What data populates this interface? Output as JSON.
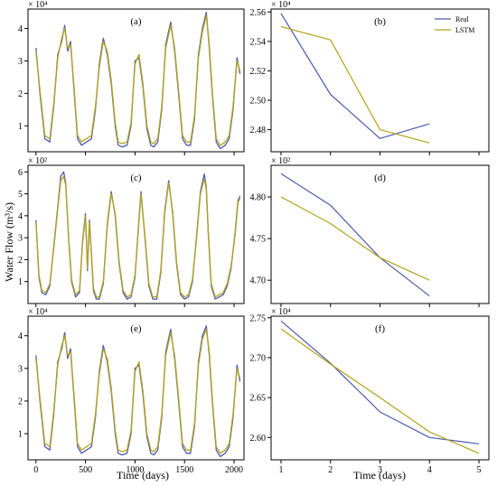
{
  "figure": {
    "ylabel": "Water Flow (m³/s)",
    "xlabel_left": "Time (days)",
    "xlabel_right": "Time (days)"
  },
  "colors": {
    "real": "#4a5bb0",
    "lstm": "#b5a21a",
    "extra": "#7fae3a"
  },
  "chart_data": [
    {
      "id": "a",
      "panel_label": "(a)",
      "type": "line",
      "scale_label": "× 10⁴",
      "xlim": [
        -80,
        2100
      ],
      "ylim": [
        0.2,
        4.6
      ],
      "xticks": [
        0,
        500,
        1000,
        1500,
        2000
      ],
      "show_xticks": false,
      "yticks": [
        1,
        2,
        3,
        4
      ],
      "series": [
        {
          "key": "real",
          "name": "Real",
          "x": [
            0,
            40,
            90,
            140,
            180,
            220,
            260,
            290,
            320,
            350,
            380,
            420,
            460,
            510,
            560,
            600,
            640,
            680,
            720,
            760,
            800,
            830,
            870,
            920,
            960,
            1000,
            1040,
            1080,
            1120,
            1160,
            1190,
            1230,
            1270,
            1310,
            1360,
            1400,
            1440,
            1480,
            1520,
            1560,
            1600,
            1640,
            1680,
            1720,
            1750,
            1780,
            1820,
            1860,
            1910,
            1950,
            1990,
            2030,
            2060
          ],
          "y": [
            3.4,
            2.0,
            0.6,
            0.5,
            1.6,
            3.2,
            3.6,
            4.1,
            3.3,
            3.6,
            2.3,
            0.6,
            0.4,
            0.5,
            0.6,
            1.5,
            2.9,
            3.7,
            3.2,
            2.3,
            1.0,
            0.4,
            0.35,
            0.4,
            1.0,
            3.0,
            3.1,
            2.2,
            0.9,
            0.4,
            0.35,
            0.5,
            1.5,
            3.5,
            4.2,
            3.3,
            2.0,
            0.6,
            0.4,
            0.4,
            1.2,
            3.2,
            4.0,
            4.5,
            3.4,
            2.0,
            0.5,
            0.3,
            0.4,
            0.6,
            1.5,
            3.1,
            2.6
          ]
        },
        {
          "key": "lstm",
          "name": "LSTM",
          "x": [
            0,
            40,
            90,
            140,
            180,
            220,
            260,
            290,
            320,
            350,
            380,
            420,
            460,
            510,
            560,
            600,
            640,
            680,
            720,
            760,
            800,
            830,
            870,
            920,
            960,
            1000,
            1040,
            1080,
            1120,
            1160,
            1190,
            1230,
            1270,
            1310,
            1360,
            1400,
            1440,
            1480,
            1520,
            1560,
            1600,
            1640,
            1680,
            1720,
            1750,
            1780,
            1820,
            1860,
            1910,
            1950,
            1990,
            2030,
            2060
          ],
          "y": [
            3.3,
            2.1,
            0.7,
            0.6,
            1.7,
            3.1,
            3.7,
            4.0,
            3.4,
            3.5,
            2.4,
            0.7,
            0.5,
            0.6,
            0.7,
            1.6,
            2.8,
            3.6,
            3.3,
            2.4,
            1.1,
            0.5,
            0.45,
            0.5,
            1.1,
            2.9,
            3.2,
            2.3,
            1.0,
            0.5,
            0.45,
            0.6,
            1.6,
            3.4,
            4.1,
            3.4,
            2.1,
            0.7,
            0.5,
            0.5,
            1.3,
            3.1,
            3.9,
            4.4,
            3.5,
            2.1,
            0.6,
            0.4,
            0.5,
            0.7,
            1.6,
            3.0,
            2.7
          ]
        }
      ]
    },
    {
      "id": "b",
      "panel_label": "(b)",
      "type": "line",
      "scale_label": "× 10⁴",
      "xlim": [
        0.8,
        5.2
      ],
      "ylim": [
        2.465,
        2.562
      ],
      "xticks": [
        1,
        2,
        3,
        4,
        5
      ],
      "show_xticks": false,
      "yticks": [
        2.48,
        2.5,
        2.52,
        2.54,
        2.56
      ],
      "legend": "top-right",
      "series": [
        {
          "key": "real",
          "name": "Real",
          "x": [
            1,
            2,
            3,
            4
          ],
          "y": [
            2.559,
            2.504,
            2.474,
            2.484
          ]
        },
        {
          "key": "lstm",
          "name": "LSTM",
          "x": [
            1,
            2,
            3,
            4
          ],
          "y": [
            2.55,
            2.541,
            2.48,
            2.471
          ]
        }
      ]
    },
    {
      "id": "c",
      "panel_label": "(c)",
      "type": "line",
      "scale_label": "× 10²",
      "xlim": [
        -80,
        2100
      ],
      "ylim": [
        0,
        6.3
      ],
      "xticks": [
        0,
        500,
        1000,
        1500,
        2000
      ],
      "show_xticks": false,
      "yticks": [
        1,
        2,
        3,
        4,
        5,
        6
      ],
      "series": [
        {
          "key": "real",
          "name": "Real",
          "x": [
            0,
            30,
            60,
            100,
            140,
            180,
            220,
            250,
            280,
            300,
            330,
            360,
            400,
            440,
            470,
            500,
            520,
            540,
            560,
            580,
            610,
            640,
            680,
            720,
            760,
            800,
            840,
            880,
            920,
            960,
            1000,
            1030,
            1060,
            1100,
            1140,
            1180,
            1220,
            1260,
            1300,
            1340,
            1380,
            1420,
            1460,
            1500,
            1540,
            1580,
            1620,
            1660,
            1700,
            1720,
            1740,
            1770,
            1810,
            1850,
            1890,
            1930,
            1970,
            2010,
            2040,
            2060
          ],
          "y": [
            3.8,
            1.2,
            0.5,
            0.4,
            0.8,
            2.6,
            4.4,
            5.8,
            6.0,
            5.5,
            3.0,
            1.0,
            0.3,
            0.5,
            2.8,
            4.1,
            1.5,
            3.8,
            2.2,
            0.6,
            0.2,
            0.2,
            0.9,
            3.6,
            5.1,
            4.0,
            1.8,
            0.5,
            0.2,
            0.3,
            1.2,
            3.2,
            5.1,
            3.0,
            0.8,
            0.2,
            0.2,
            1.4,
            4.2,
            5.6,
            4.1,
            1.8,
            0.4,
            0.2,
            0.3,
            1.0,
            3.0,
            5.1,
            5.9,
            5.3,
            3.2,
            0.8,
            0.2,
            0.3,
            0.4,
            0.8,
            1.6,
            3.2,
            4.7,
            4.9
          ]
        },
        {
          "key": "lstm",
          "name": "LSTM",
          "x": [
            0,
            30,
            60,
            100,
            140,
            180,
            220,
            250,
            280,
            300,
            330,
            360,
            400,
            440,
            470,
            500,
            520,
            540,
            560,
            580,
            610,
            640,
            680,
            720,
            760,
            800,
            840,
            880,
            920,
            960,
            1000,
            1030,
            1060,
            1100,
            1140,
            1180,
            1220,
            1260,
            1300,
            1340,
            1380,
            1420,
            1460,
            1500,
            1540,
            1580,
            1620,
            1660,
            1700,
            1720,
            1740,
            1770,
            1810,
            1850,
            1890,
            1930,
            1970,
            2010,
            2040,
            2060
          ],
          "y": [
            3.7,
            1.3,
            0.6,
            0.5,
            0.9,
            2.5,
            4.3,
            5.6,
            5.8,
            5.4,
            3.1,
            1.1,
            0.4,
            0.6,
            2.7,
            4.0,
            1.6,
            3.7,
            2.3,
            0.7,
            0.3,
            0.3,
            1.0,
            3.5,
            5.0,
            4.1,
            1.9,
            0.6,
            0.3,
            0.4,
            1.3,
            3.1,
            5.0,
            3.1,
            0.9,
            0.3,
            0.3,
            1.5,
            4.1,
            5.5,
            4.2,
            1.9,
            0.5,
            0.3,
            0.4,
            1.1,
            2.9,
            5.0,
            5.7,
            5.2,
            3.3,
            0.9,
            0.3,
            0.4,
            0.5,
            0.9,
            1.7,
            3.1,
            4.6,
            4.8
          ]
        }
      ]
    },
    {
      "id": "d",
      "panel_label": "(d)",
      "type": "line",
      "scale_label": "× 10²",
      "xlim": [
        0.8,
        5.2
      ],
      "ylim": [
        4.672,
        4.838
      ],
      "xticks": [
        1,
        2,
        3,
        4,
        5
      ],
      "show_xticks": false,
      "yticks": [
        4.7,
        4.75,
        4.8
      ],
      "series": [
        {
          "key": "real",
          "name": "Real",
          "x": [
            1,
            2,
            3,
            4
          ],
          "y": [
            4.828,
            4.79,
            4.727,
            4.681
          ]
        },
        {
          "key": "lstm",
          "name": "LSTM",
          "x": [
            1,
            2,
            3,
            4
          ],
          "y": [
            4.8,
            4.768,
            4.727,
            4.7
          ]
        }
      ]
    },
    {
      "id": "e",
      "panel_label": "(e)",
      "type": "line",
      "scale_label": "× 10⁴",
      "xlim": [
        -80,
        2100
      ],
      "ylim": [
        0.2,
        4.6
      ],
      "xticks": [
        0,
        500,
        1000,
        1500,
        2000
      ],
      "show_xticks": true,
      "yticks": [
        1,
        2,
        3,
        4
      ],
      "series": [
        {
          "key": "real",
          "name": "Real",
          "x": [
            0,
            40,
            90,
            140,
            180,
            220,
            260,
            290,
            320,
            350,
            380,
            420,
            460,
            510,
            560,
            600,
            640,
            680,
            720,
            760,
            800,
            830,
            870,
            920,
            960,
            1000,
            1040,
            1080,
            1120,
            1160,
            1190,
            1230,
            1270,
            1310,
            1360,
            1400,
            1440,
            1480,
            1520,
            1560,
            1600,
            1640,
            1680,
            1720,
            1750,
            1780,
            1820,
            1860,
            1910,
            1950,
            1990,
            2030,
            2060
          ],
          "y": [
            3.4,
            2.0,
            0.6,
            0.5,
            1.6,
            3.2,
            3.6,
            4.1,
            3.3,
            3.6,
            2.3,
            0.6,
            0.4,
            0.5,
            0.6,
            1.5,
            2.9,
            3.7,
            3.2,
            2.3,
            1.0,
            0.4,
            0.35,
            0.4,
            1.0,
            3.0,
            3.1,
            2.2,
            0.9,
            0.4,
            0.35,
            0.5,
            1.5,
            3.5,
            4.2,
            3.3,
            2.0,
            0.6,
            0.4,
            0.4,
            1.2,
            3.2,
            4.0,
            4.3,
            3.4,
            2.0,
            0.5,
            0.3,
            0.4,
            0.6,
            1.5,
            3.1,
            2.6
          ]
        },
        {
          "key": "lstm",
          "name": "LSTM",
          "x": [
            0,
            40,
            90,
            140,
            180,
            220,
            260,
            290,
            320,
            350,
            380,
            420,
            460,
            510,
            560,
            600,
            640,
            680,
            720,
            760,
            800,
            830,
            870,
            920,
            960,
            1000,
            1040,
            1080,
            1120,
            1160,
            1190,
            1230,
            1270,
            1310,
            1360,
            1400,
            1440,
            1480,
            1520,
            1560,
            1600,
            1640,
            1680,
            1720,
            1750,
            1780,
            1820,
            1860,
            1910,
            1950,
            1990,
            2030,
            2060
          ],
          "y": [
            3.3,
            2.1,
            0.7,
            0.6,
            1.7,
            3.1,
            3.7,
            4.0,
            3.4,
            3.5,
            2.4,
            0.7,
            0.5,
            0.6,
            0.7,
            1.6,
            2.8,
            3.6,
            3.3,
            2.4,
            1.1,
            0.5,
            0.45,
            0.5,
            1.1,
            2.9,
            3.2,
            2.3,
            1.0,
            0.5,
            0.45,
            0.6,
            1.6,
            3.4,
            4.1,
            3.4,
            2.1,
            0.7,
            0.5,
            0.5,
            1.3,
            3.1,
            3.9,
            4.2,
            3.5,
            2.1,
            0.6,
            0.4,
            0.5,
            0.7,
            1.6,
            3.0,
            2.7
          ]
        }
      ]
    },
    {
      "id": "f",
      "panel_label": "(f)",
      "type": "line",
      "scale_label": "× 10⁴",
      "xlim": [
        0.8,
        5.2
      ],
      "ylim": [
        2.572,
        2.752
      ],
      "xticks": [
        1,
        2,
        3,
        4,
        5
      ],
      "show_xticks": true,
      "yticks": [
        2.6,
        2.65,
        2.7,
        2.75
      ],
      "series": [
        {
          "key": "real",
          "name": "Real",
          "x": [
            1,
            2,
            3,
            4,
            5
          ],
          "y": [
            2.746,
            2.693,
            2.632,
            2.6,
            2.592
          ]
        },
        {
          "key": "lstm",
          "name": "LSTM",
          "x": [
            1,
            2,
            3,
            4,
            5
          ],
          "y": [
            2.736,
            2.692,
            2.65,
            2.607,
            2.58
          ]
        }
      ]
    }
  ]
}
